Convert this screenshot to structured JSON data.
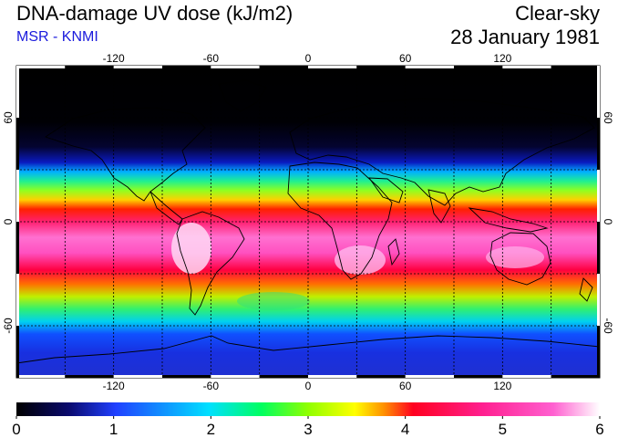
{
  "header": {
    "title": "DNA-damage UV dose (kJ/m2)",
    "source": "MSR - KNMI",
    "condition": "Clear-sky",
    "date": "28 January 1981"
  },
  "map": {
    "longitude_ticks": [
      "-120",
      "-60",
      "0",
      "60",
      "120"
    ],
    "latitude_ticks": [
      "60",
      "0",
      "-60"
    ],
    "longitude_range": [
      -180,
      180
    ],
    "latitude_range": [
      -90,
      90
    ],
    "gridline_longitudes": [
      -150,
      -120,
      -90,
      -60,
      -30,
      0,
      30,
      60,
      90,
      120,
      150
    ],
    "gridline_latitudes": [
      60,
      30,
      0,
      -30,
      -60
    ]
  },
  "colorbar": {
    "labels": [
      "0",
      "1",
      "2",
      "3",
      "4",
      "5",
      "6"
    ],
    "min": 0,
    "max": 6,
    "colors": [
      "#000000",
      "#0a0a6e",
      "#2040ff",
      "#00e0ff",
      "#00ff60",
      "#90ff00",
      "#ffff00",
      "#ff9000",
      "#ff0020",
      "#ff2090",
      "#ff60d0",
      "#ffffff"
    ]
  }
}
